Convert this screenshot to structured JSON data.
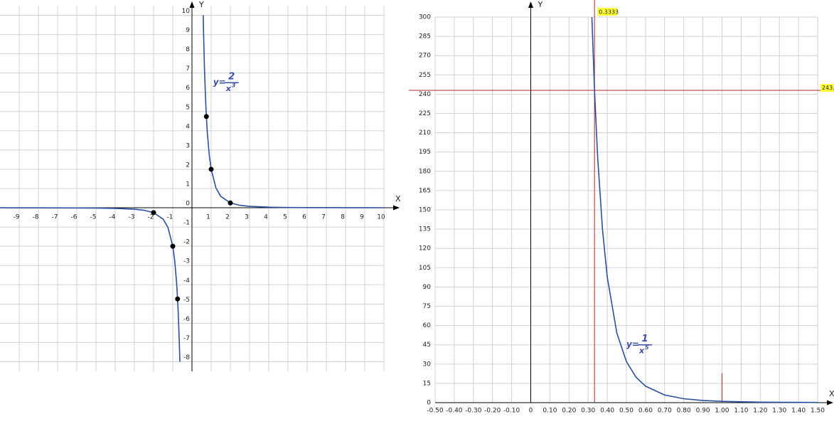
{
  "chart_data": [
    {
      "type": "line",
      "x_label": "X",
      "y_label": "Y",
      "xlim": [
        -10,
        10
      ],
      "ylim": [
        -8.5,
        10.5
      ],
      "xticks": [
        -9,
        -8,
        -7,
        -6,
        -5,
        -4,
        -3,
        -2,
        -1,
        1,
        2,
        3,
        4,
        5,
        6,
        7,
        8,
        9,
        10
      ],
      "yticks": [
        -8,
        -7,
        -6,
        -5,
        -4,
        -3,
        -2,
        -1,
        0,
        1,
        2,
        3,
        4,
        5,
        6,
        7,
        8,
        9,
        10
      ],
      "grid": true,
      "series": [
        {
          "color": "#2a4ea0",
          "x": [
            -10,
            -8,
            -6,
            -5,
            -4,
            -3,
            -2.5,
            -2,
            -1.5,
            -1.25,
            -1,
            -0.9,
            -0.8,
            -0.75,
            -0.7,
            -0.65,
            -0.63,
            null,
            0.585,
            0.6,
            0.65,
            0.7,
            0.75,
            0.8,
            0.9,
            1,
            1.25,
            1.5,
            2,
            2.5,
            3,
            4,
            5,
            6,
            8,
            10
          ],
          "values": [
            -0.002,
            -0.0039,
            -0.0093,
            -0.016,
            -0.031,
            -0.074,
            -0.128,
            -0.25,
            -0.593,
            -1.024,
            -2,
            -2.743,
            -3.906,
            -4.741,
            -5.831,
            -7.283,
            -8,
            null,
            10,
            9.259,
            7.283,
            5.831,
            4.741,
            3.906,
            2.743,
            2,
            1.024,
            0.593,
            0.25,
            0.128,
            0.074,
            0.031,
            0.016,
            0.009,
            0.004,
            0.002
          ]
        },
        {
          "type": "scatter",
          "color": "#000000",
          "x": [
            0.75,
            1,
            2,
            -2,
            -1,
            -0.75
          ],
          "values": [
            4.741,
            2,
            0.25,
            -0.25,
            -2,
            -4.741
          ]
        }
      ],
      "annotation": {
        "prefix": "y=",
        "numerator": "2",
        "denominator": "x",
        "exponent": "3"
      }
    },
    {
      "type": "line",
      "x_label": "X",
      "y_label": "Y",
      "xlim": [
        -0.5,
        1.5
      ],
      "ylim": [
        0,
        300
      ],
      "xticks": [
        {
          "value": -0.5,
          "label": "-0.50"
        },
        {
          "value": -0.4,
          "label": "-0.40"
        },
        {
          "value": -0.3,
          "label": "-0.30"
        },
        {
          "value": -0.2,
          "label": "-0.20"
        },
        {
          "value": -0.1,
          "label": "-0.10"
        },
        0,
        {
          "value": 0.1,
          "label": "0.10"
        },
        {
          "value": 0.2,
          "label": "0.20"
        },
        {
          "value": 0.3,
          "label": "0.30"
        },
        {
          "value": 0.4,
          "label": "0.40"
        },
        {
          "value": 0.5,
          "label": "0.50"
        },
        {
          "value": 0.6,
          "label": "0.60"
        },
        {
          "value": 0.7,
          "label": "0.70"
        },
        {
          "value": 0.8,
          "label": "0.80"
        },
        {
          "value": 0.9,
          "label": "0.90"
        },
        {
          "value": 1,
          "label": "1.00"
        },
        {
          "value": 1.1,
          "label": "1.10"
        },
        {
          "value": 1.2,
          "label": "1.20"
        },
        {
          "value": 1.3,
          "label": "1.30"
        },
        {
          "value": 1.4,
          "label": "1.40"
        },
        {
          "value": 1.5,
          "label": "1.50"
        }
      ],
      "yticks": [
        0,
        15,
        30,
        45,
        60,
        75,
        90,
        105,
        120,
        135,
        150,
        165,
        180,
        195,
        210,
        225,
        240,
        255,
        270,
        285,
        300
      ],
      "grid": true,
      "series": [
        {
          "color": "#2a4ea0",
          "x": [
            0.3195,
            0.32,
            0.3333,
            0.35,
            0.375,
            0.4,
            0.45,
            0.5,
            0.55,
            0.6,
            0.7,
            0.8,
            0.9,
            1,
            1.2,
            1.5
          ],
          "values": [
            300,
            298,
            243,
            190.4,
            134.8,
            97.66,
            54.19,
            32,
            19.87,
            12.86,
            5.95,
            3.05,
            1.69,
            1,
            0.4,
            0.13
          ]
        }
      ],
      "crosshair": {
        "x": 0.3333,
        "x_label": "0.3333",
        "y": 243,
        "y_label": "243.",
        "color": "#b22222"
      },
      "marker": {
        "x": 1,
        "height": 23
      },
      "annotation": {
        "prefix": "y=",
        "numerator": "1",
        "denominator": "x",
        "exponent": "5"
      }
    }
  ]
}
